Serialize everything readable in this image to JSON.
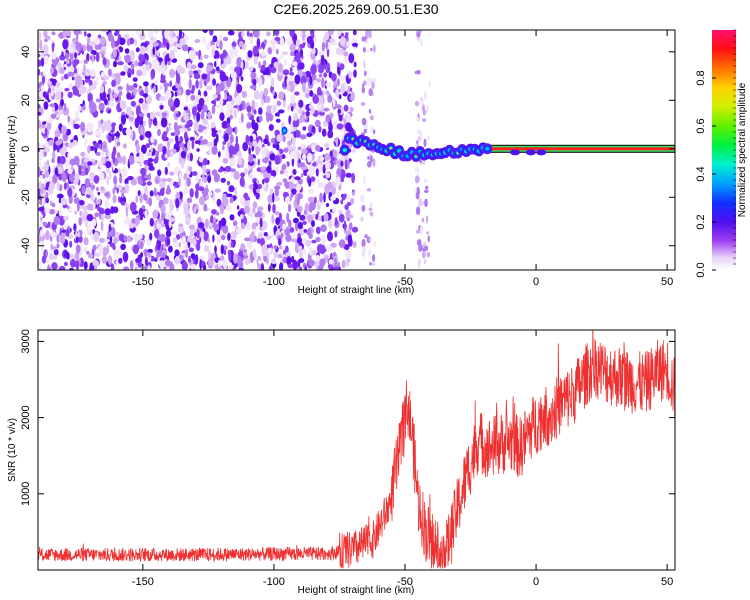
{
  "title": "C2E6.2025.269.00.51.E30",
  "chart_data": [
    {
      "type": "heatmap",
      "name": "spectrogram",
      "xlabel": "Height of straight line (km)",
      "ylabel": "Frequency (Hz)",
      "xlim": [
        -190,
        53
      ],
      "ylim": [
        -50,
        49
      ],
      "xticks": [
        -150,
        -100,
        -50,
        0,
        50
      ],
      "yticks": [
        -40,
        -20,
        0,
        20,
        40
      ],
      "colorbar": {
        "label": "Normalized spectral amplitude",
        "range": [
          0,
          1
        ],
        "ticks": [
          0.0,
          0.2,
          0.4,
          0.6,
          0.8
        ]
      },
      "noise_region_km": [
        -190,
        -73
      ],
      "signal_track": [
        {
          "x": -72,
          "y": 3.5
        },
        {
          "x": -65,
          "y": 3
        },
        {
          "x": -58,
          "y": 0.5
        },
        {
          "x": -50,
          "y": -2.5
        },
        {
          "x": -42,
          "y": -2
        },
        {
          "x": -35,
          "y": -1.5
        },
        {
          "x": -28,
          "y": -0.5
        },
        {
          "x": -20,
          "y": 0
        },
        {
          "x": 0,
          "y": 0
        },
        {
          "x": 53,
          "y": 0
        }
      ]
    },
    {
      "type": "line",
      "name": "snr",
      "xlabel": "Height of straight line (km)",
      "ylabel": "SNR (10 * v/v)",
      "xlim": [
        -190,
        53
      ],
      "ylim": [
        0,
        3150
      ],
      "xticks": [
        -150,
        -100,
        -50,
        0,
        50
      ],
      "yticks": [
        1000,
        2000,
        3000
      ],
      "color": "#ee3030",
      "series": [
        {
          "name": "SNR",
          "x": [
            -190,
            -160,
            -130,
            -100,
            -80,
            -70,
            -62,
            -56,
            -52,
            -49,
            -47,
            -45,
            -42,
            -38,
            -34,
            -30,
            -26,
            -22,
            -18,
            -14,
            -10,
            -6,
            -2,
            2,
            6,
            10,
            14,
            18,
            22,
            26,
            30,
            34,
            38,
            42,
            46,
            50,
            53
          ],
          "y": [
            200,
            200,
            200,
            210,
            215,
            260,
            400,
            850,
            1550,
            2200,
            1700,
            900,
            500,
            300,
            250,
            800,
            1300,
            1700,
            1600,
            1650,
            1700,
            1600,
            1850,
            2000,
            2050,
            2200,
            2300,
            2500,
            2700,
            2600,
            2550,
            2500,
            2450,
            2450,
            2600,
            2650,
            2350
          ]
        }
      ]
    }
  ]
}
